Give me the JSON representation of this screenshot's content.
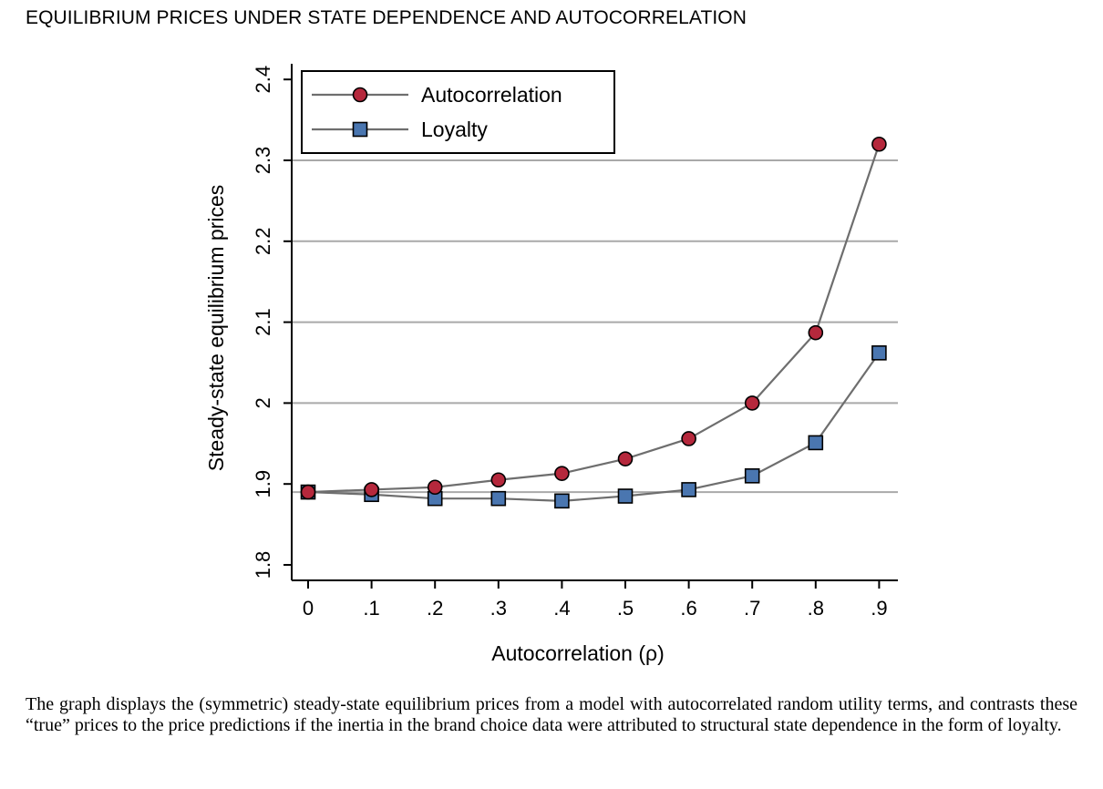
{
  "figure": {
    "title": "EQUILIBRIUM PRICES UNDER STATE DEPENDENCE AND AUTOCORRELATION",
    "caption": "The graph displays the (symmetric) steady-state equilibrium prices from a model with autocorrelated random utility terms, and contrasts these “true” prices to the price predictions if the inertia in the brand choice data were attributed to structural state dependence in the form of loyalty."
  },
  "chart_data": {
    "type": "line",
    "title": "",
    "xlabel": "Autocorrelation (ρ)",
    "ylabel": "Steady-state equilibrium prices",
    "x": [
      0,
      0.1,
      0.2,
      0.3,
      0.4,
      0.5,
      0.6,
      0.7,
      0.8,
      0.9
    ],
    "x_tick_labels": [
      "0",
      ".1",
      ".2",
      ".3",
      ".4",
      ".5",
      ".6",
      ".7",
      ".8",
      ".9"
    ],
    "y_ticks": [
      1.8,
      1.9,
      2,
      2.1,
      2.2,
      2.3,
      2.4
    ],
    "y_tick_labels": [
      "1.8",
      "1.9",
      "2",
      "2.1",
      "2.2",
      "2.3",
      "2.4"
    ],
    "ylim": [
      1.8,
      2.4
    ],
    "xlim": [
      0,
      0.9
    ],
    "grid": "horizontal lines at 1.89, 2.0, 2.1, 2.2, 2.3",
    "gridlines_y": [
      1.89,
      2.0,
      2.1,
      2.2,
      2.3
    ],
    "legend_position": "top-left inside plot",
    "series": [
      {
        "name": "Autocorrelation",
        "marker": "circle",
        "color": "#b5283c",
        "values": [
          1.89,
          1.893,
          1.896,
          1.905,
          1.913,
          1.931,
          1.956,
          2.0,
          2.087,
          2.32
        ]
      },
      {
        "name": "Loyalty",
        "marker": "square",
        "color": "#4a76b0",
        "values": [
          1.89,
          1.887,
          1.882,
          1.882,
          1.879,
          1.885,
          1.893,
          1.91,
          1.951,
          2.062
        ]
      }
    ]
  }
}
